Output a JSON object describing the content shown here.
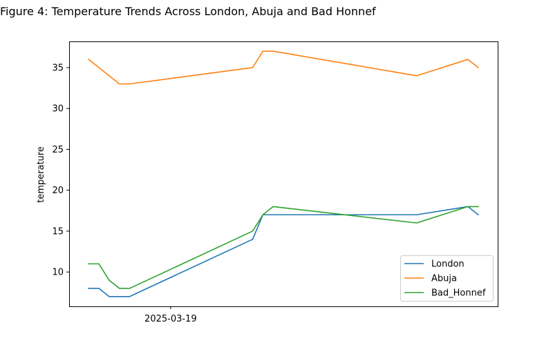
{
  "chart_data": {
    "type": "line",
    "title": "Figure 4: Temperature Trends Across London, Abuja and Bad Honnef",
    "xlabel": "",
    "ylabel": "temperature",
    "x": [
      "2025-03-17 00:00",
      "2025-03-17 06:00",
      "2025-03-17 12:00",
      "2025-03-17 18:00",
      "2025-03-18 00:00",
      "2025-03-21 00:00",
      "2025-03-21 06:00",
      "2025-03-21 12:00",
      "2025-03-25 00:00",
      "2025-03-26 06:00",
      "2025-03-26 12:00"
    ],
    "x_ticks": [
      "2025-03-19"
    ],
    "ylim": [
      5.8,
      38.2
    ],
    "y_ticks": [
      10,
      15,
      20,
      25,
      30,
      35
    ],
    "grid": false,
    "legend_position": "lower right",
    "series": [
      {
        "name": "London",
        "color": "#1f77b4",
        "values": [
          8,
          8,
          7,
          7,
          7,
          14,
          17,
          17,
          17,
          18,
          17
        ]
      },
      {
        "name": "Abuja",
        "color": "#ff7f0e",
        "values": [
          36,
          35,
          34,
          33,
          33,
          35,
          37,
          37,
          34,
          36,
          35
        ]
      },
      {
        "name": "Bad_Honnef",
        "color": "#2ca02c",
        "values": [
          11,
          11,
          9,
          8,
          8,
          15,
          17,
          18,
          16,
          18,
          18
        ]
      }
    ]
  }
}
